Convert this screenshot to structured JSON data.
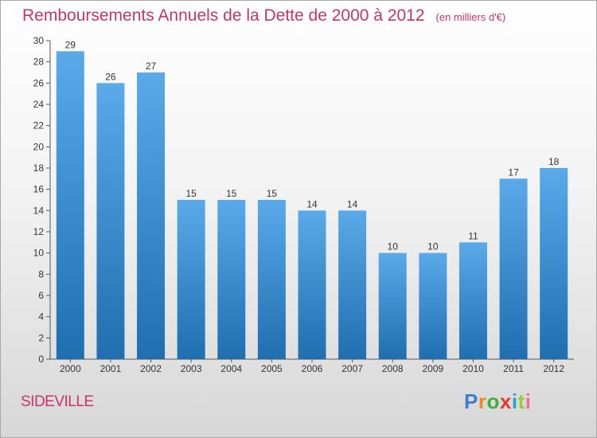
{
  "title": "Remboursements Annuels de la Dette de 2000 à 2012",
  "units": "(en milliers d'€)",
  "footer": {
    "commune": "SIDEVILLE"
  },
  "brand": {
    "letters": [
      "P",
      "r",
      "o",
      "x",
      "i",
      "t",
      "i"
    ],
    "colors": [
      "#3b7fd0",
      "#f08a1a",
      "#3fae3f",
      "#e23b2e",
      "#2f9fd8",
      "#9acd32",
      "#ef6c9c"
    ]
  },
  "colors": {
    "bar_light": "#5aaaea",
    "bar_dark": "#1f6fb0",
    "title": "#c8336a"
  },
  "chart_data": {
    "type": "bar",
    "categories": [
      "2000",
      "2001",
      "2002",
      "2003",
      "2004",
      "2005",
      "2006",
      "2007",
      "2008",
      "2009",
      "2010",
      "2011",
      "2012"
    ],
    "values": [
      29,
      26,
      27,
      15,
      15,
      15,
      14,
      14,
      10,
      10,
      11,
      17,
      18
    ],
    "ylim": [
      0,
      30
    ],
    "yticks": [
      0,
      2,
      4,
      6,
      8,
      10,
      12,
      14,
      16,
      18,
      20,
      22,
      24,
      26,
      28,
      30
    ],
    "grid": false,
    "xlabel": "",
    "ylabel": ""
  }
}
